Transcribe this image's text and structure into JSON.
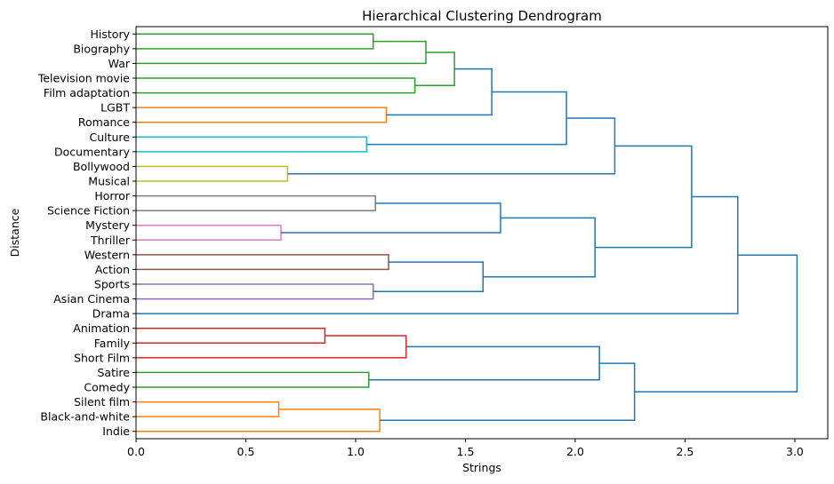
{
  "chart_data": {
    "type": "dendrogram",
    "title": "Hierarchical Clustering Dendrogram",
    "xlabel": "Strings",
    "ylabel": "Distance",
    "orientation": "left",
    "xlim": [
      0,
      3.15
    ],
    "xticks": [
      0.0,
      0.5,
      1.0,
      1.5,
      2.0,
      2.5,
      3.0
    ],
    "xtick_labels": [
      "0.0",
      "0.5",
      "1.0",
      "1.5",
      "2.0",
      "2.5",
      "3.0"
    ],
    "grid": false,
    "leaves": [
      "History",
      "Biography",
      "War",
      "Television movie",
      "Film adaptation",
      "LGBT",
      "Romance",
      "Culture",
      "Documentary",
      "Bollywood",
      "Musical",
      "Horror",
      "Science Fiction",
      "Mystery",
      "Thriller",
      "Western",
      "Action",
      "Sports",
      "Asian Cinema",
      "Drama",
      "Animation",
      "Family",
      "Short Film",
      "Satire",
      "Comedy",
      "Silent film",
      "Black-and-white",
      "Indie"
    ],
    "merges": [
      {
        "left": "History",
        "right": "Biography",
        "distance": 1.08,
        "color": "#2ca02c"
      },
      {
        "left": "Television movie",
        "right": "Film adaptation",
        "distance": 1.27,
        "color": "#2ca02c"
      },
      {
        "left": "m0",
        "right": "War",
        "distance": 1.32,
        "color": "#2ca02c"
      },
      {
        "left": "m2",
        "right": "m1",
        "distance": 1.45,
        "color": "#2ca02c"
      },
      {
        "left": "LGBT",
        "right": "Romance",
        "distance": 1.14,
        "color": "#ff7f0e"
      },
      {
        "left": "m3",
        "right": "m4",
        "distance": 1.62,
        "color": "#1f77b4"
      },
      {
        "left": "Culture",
        "right": "Documentary",
        "distance": 1.05,
        "color": "#17becf"
      },
      {
        "left": "m5",
        "right": "m6",
        "distance": 1.96,
        "color": "#1f77b4"
      },
      {
        "left": "Bollywood",
        "right": "Musical",
        "distance": 0.69,
        "color": "#bcbd22"
      },
      {
        "left": "m7",
        "right": "m8",
        "distance": 2.18,
        "color": "#1f77b4"
      },
      {
        "left": "Horror",
        "right": "Science Fiction",
        "distance": 1.09,
        "color": "#7f7f7f"
      },
      {
        "left": "Mystery",
        "right": "Thriller",
        "distance": 0.66,
        "color": "#e377c2"
      },
      {
        "left": "m10",
        "right": "m11",
        "distance": 1.66,
        "color": "#1f77b4"
      },
      {
        "left": "Western",
        "right": "Action",
        "distance": 1.15,
        "color": "#8c564b"
      },
      {
        "left": "Sports",
        "right": "Asian Cinema",
        "distance": 1.08,
        "color": "#9467bd"
      },
      {
        "left": "m13",
        "right": "m14",
        "distance": 1.58,
        "color": "#1f77b4"
      },
      {
        "left": "m12",
        "right": "m15",
        "distance": 2.09,
        "color": "#1f77b4"
      },
      {
        "left": "m9",
        "right": "m16",
        "distance": 2.53,
        "color": "#1f77b4"
      },
      {
        "left": "m17",
        "right": "Drama",
        "distance": 2.74,
        "color": "#1f77b4"
      },
      {
        "left": "Animation",
        "right": "Family",
        "distance": 0.86,
        "color": "#d62728"
      },
      {
        "left": "m19",
        "right": "Short Film",
        "distance": 1.23,
        "color": "#d62728"
      },
      {
        "left": "Satire",
        "right": "Comedy",
        "distance": 1.06,
        "color": "#2ca02c"
      },
      {
        "left": "m20",
        "right": "m21",
        "distance": 2.11,
        "color": "#1f77b4"
      },
      {
        "left": "Silent film",
        "right": "Black-and-white",
        "distance": 0.65,
        "color": "#ff7f0e"
      },
      {
        "left": "m23",
        "right": "Indie",
        "distance": 1.11,
        "color": "#ff7f0e"
      },
      {
        "left": "m22",
        "right": "m24",
        "distance": 2.27,
        "color": "#1f77b4"
      },
      {
        "left": "m18",
        "right": "m25",
        "distance": 3.01,
        "color": "#1f77b4"
      }
    ]
  }
}
